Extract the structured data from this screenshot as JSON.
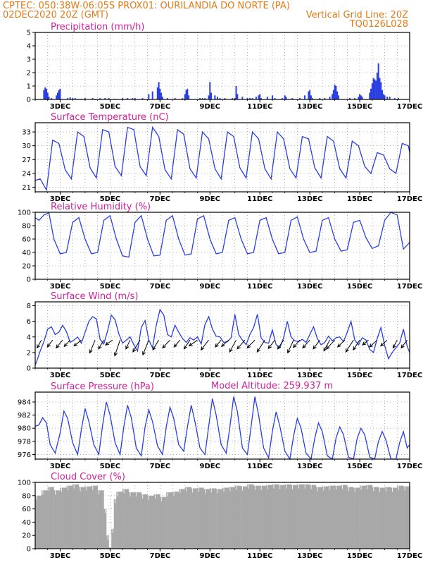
{
  "header": {
    "line1_left": "CPTEC:   050:38W-06:05S   PROX01: OURILANDIA DO NORTE (PA)",
    "line2_left": "02DEC2020 20Z (GMT)",
    "line2_right": "Vertical Grid Line: 20Z",
    "line3_right": "TQ0126L028"
  },
  "model_altitude": "Model Altitude: 259.937 m",
  "colors": {
    "header": "#e07b1a",
    "title": "#d0209a",
    "series": "#2a3fe0",
    "cloud": "#a8a8a8"
  },
  "x_axis": {
    "start_day": 2.0,
    "end_day": 17.0,
    "tick_days": [
      3,
      5,
      7,
      9,
      11,
      13,
      15,
      17
    ],
    "tick_labels": [
      "3DEC",
      "5DEC",
      "7DEC",
      "9DEC",
      "11DEC",
      "13DEC",
      "15DEC",
      "17DEC"
    ]
  },
  "chart_data": [
    {
      "id": "precip",
      "type": "bar",
      "title": "Precipitation (mm/h)",
      "ylim": [
        0,
        5
      ],
      "yticks": [
        0,
        1,
        2,
        3,
        4,
        5
      ],
      "x_unit": "day of December 2020 (fractional)",
      "x": [
        2.35,
        2.4,
        2.45,
        2.5,
        2.55,
        2.65,
        2.85,
        2.9,
        2.95,
        3.0,
        3.3,
        3.4,
        3.5,
        3.6,
        3.7,
        3.85,
        4.0,
        4.3,
        4.4,
        4.6,
        4.8,
        4.95,
        5.2,
        5.5,
        5.7,
        5.9,
        6.0,
        6.3,
        6.55,
        6.7,
        6.9,
        6.95,
        7.0,
        7.05,
        7.1,
        7.3,
        7.6,
        7.9,
        8.0,
        8.05,
        8.1,
        8.15,
        8.6,
        8.7,
        8.8,
        8.95,
        9.0,
        9.05,
        9.2,
        9.3,
        9.4,
        9.6,
        9.9,
        10.0,
        10.05,
        10.1,
        10.3,
        10.5,
        10.6,
        10.7,
        10.85,
        10.95,
        11.0,
        11.05,
        11.3,
        11.5,
        11.6,
        11.9,
        12.0,
        12.05,
        12.3,
        12.6,
        12.8,
        12.95,
        13.0,
        13.05,
        13.1,
        13.4,
        13.6,
        13.8,
        13.9,
        13.95,
        14.0,
        14.05,
        14.1,
        14.15,
        14.6,
        14.8,
        14.95,
        15.0,
        15.05,
        15.1,
        15.4,
        15.45,
        15.5,
        15.55,
        15.6,
        15.65,
        15.7,
        15.75,
        15.8,
        15.85,
        15.9,
        15.95,
        16.0,
        16.1,
        16.2,
        16.4,
        16.55
      ],
      "values": [
        0.7,
        0.9,
        0.8,
        0.5,
        0.2,
        0.1,
        0.3,
        0.5,
        0.7,
        0.8,
        0.1,
        0.15,
        0.1,
        0.1,
        0.05,
        0.05,
        0.1,
        0.1,
        0.05,
        0.1,
        0.1,
        0.1,
        0.05,
        0.1,
        0.1,
        0.1,
        0.1,
        0.1,
        0.4,
        0.6,
        0.9,
        1.3,
        0.8,
        0.5,
        0.2,
        0.1,
        0.1,
        0.1,
        0.4,
        0.7,
        0.8,
        0.3,
        0.1,
        0.1,
        0.1,
        0.3,
        1.3,
        0.5,
        0.3,
        0.2,
        0.1,
        0.1,
        0.1,
        0.1,
        1.0,
        0.4,
        0.2,
        0.1,
        0.1,
        0.1,
        0.2,
        0.3,
        0.4,
        0.1,
        0.2,
        0.3,
        0.1,
        0.1,
        0.3,
        0.2,
        0.1,
        0.1,
        0.3,
        0.6,
        0.7,
        0.3,
        0.1,
        0.1,
        0.1,
        0.2,
        0.4,
        0.7,
        1.1,
        1.0,
        0.6,
        0.3,
        0.1,
        0.1,
        0.2,
        0.4,
        0.3,
        0.2,
        0.5,
        0.8,
        1.2,
        1.6,
        1.5,
        1.4,
        2.0,
        2.7,
        1.6,
        1.3,
        0.7,
        0.4,
        0.3,
        0.2,
        0.2,
        0.1,
        0.1
      ]
    },
    {
      "id": "temp",
      "type": "line",
      "title": "Surface Temperature (nC)",
      "ylim": [
        20,
        35
      ],
      "yticks": [
        21,
        24,
        27,
        30,
        33
      ],
      "x_unit": "day of December 2020 (fractional)",
      "x": [
        2.0,
        2.2,
        2.45,
        2.7,
        2.95,
        3.2,
        3.45,
        3.7,
        3.95,
        4.2,
        4.45,
        4.7,
        4.95,
        5.2,
        5.45,
        5.7,
        5.95,
        6.2,
        6.45,
        6.7,
        6.95,
        7.2,
        7.45,
        7.7,
        7.95,
        8.2,
        8.45,
        8.7,
        8.95,
        9.2,
        9.45,
        9.7,
        9.95,
        10.2,
        10.45,
        10.7,
        10.95,
        11.2,
        11.45,
        11.7,
        11.95,
        12.2,
        12.45,
        12.7,
        12.95,
        13.2,
        13.45,
        13.7,
        13.95,
        14.2,
        14.45,
        14.7,
        14.95,
        15.2,
        15.45,
        15.7,
        15.95,
        16.2,
        16.45,
        16.7,
        16.95,
        17.0
      ],
      "values": [
        22.5,
        22.8,
        20.4,
        31.2,
        30.5,
        24.8,
        22.8,
        33.0,
        32.0,
        25.2,
        23.0,
        33.5,
        33.0,
        25.5,
        23.5,
        34.0,
        33.5,
        25.5,
        23.5,
        34.0,
        32.0,
        24.8,
        22.8,
        33.5,
        32.5,
        25.0,
        23.0,
        33.0,
        31.5,
        25.0,
        22.8,
        33.0,
        32.0,
        25.2,
        23.0,
        33.0,
        31.5,
        25.0,
        22.8,
        33.0,
        31.5,
        25.0,
        23.0,
        32.0,
        31.5,
        25.2,
        23.0,
        32.0,
        31.0,
        25.0,
        23.0,
        31.0,
        30.0,
        25.5,
        24.0,
        28.5,
        28.0,
        25.0,
        24.0,
        30.5,
        30.0,
        28.5
      ]
    },
    {
      "id": "rh",
      "type": "line",
      "title": "Relative Humidity (%)",
      "ylim": [
        0,
        100
      ],
      "yticks": [
        0,
        20,
        40,
        60,
        80,
        100
      ],
      "x_unit": "day of December 2020 (fractional)",
      "x": [
        2.0,
        2.15,
        2.35,
        2.55,
        2.75,
        3.0,
        3.25,
        3.5,
        3.75,
        4.0,
        4.25,
        4.5,
        4.75,
        5.0,
        5.25,
        5.5,
        5.75,
        6.0,
        6.25,
        6.5,
        6.75,
        7.0,
        7.25,
        7.5,
        7.75,
        8.0,
        8.25,
        8.5,
        8.75,
        9.0,
        9.25,
        9.5,
        9.75,
        10.0,
        10.25,
        10.5,
        10.75,
        11.0,
        11.25,
        11.5,
        11.75,
        12.0,
        12.25,
        12.5,
        12.75,
        13.0,
        13.25,
        13.5,
        13.75,
        14.0,
        14.25,
        14.5,
        14.75,
        15.0,
        15.25,
        15.5,
        15.75,
        16.0,
        16.25,
        16.5,
        16.75,
        17.0
      ],
      "values": [
        92,
        88,
        96,
        99,
        60,
        38,
        40,
        85,
        92,
        60,
        38,
        40,
        88,
        95,
        60,
        35,
        33,
        85,
        95,
        60,
        35,
        36,
        88,
        95,
        60,
        36,
        38,
        90,
        95,
        60,
        38,
        40,
        88,
        92,
        60,
        38,
        40,
        88,
        92,
        60,
        38,
        40,
        88,
        93,
        60,
        40,
        42,
        88,
        92,
        60,
        42,
        44,
        85,
        88,
        62,
        46,
        50,
        88,
        100,
        96,
        45,
        55
      ]
    },
    {
      "id": "wind",
      "type": "line",
      "title": "Surface Wind (m/s)",
      "ylim": [
        0,
        8.5
      ],
      "yticks": [
        0,
        2,
        4,
        6,
        8
      ],
      "x_unit": "day of December 2020 (fractional)",
      "x": [
        2.0,
        2.1,
        2.2,
        2.35,
        2.5,
        2.65,
        2.8,
        2.95,
        3.1,
        3.25,
        3.4,
        3.55,
        3.7,
        3.85,
        4.0,
        4.15,
        4.3,
        4.45,
        4.6,
        4.75,
        4.9,
        5.05,
        5.2,
        5.35,
        5.5,
        5.65,
        5.8,
        5.95,
        6.1,
        6.25,
        6.4,
        6.55,
        6.7,
        6.85,
        7.0,
        7.15,
        7.3,
        7.45,
        7.6,
        7.75,
        7.9,
        8.05,
        8.2,
        8.35,
        8.5,
        8.65,
        8.8,
        8.95,
        9.1,
        9.25,
        9.4,
        9.55,
        9.7,
        9.85,
        10.0,
        10.15,
        10.3,
        10.45,
        10.6,
        10.75,
        10.9,
        11.05,
        11.2,
        11.35,
        11.5,
        11.65,
        11.8,
        11.95,
        12.1,
        12.25,
        12.4,
        12.55,
        12.7,
        12.85,
        13.0,
        13.15,
        13.3,
        13.45,
        13.6,
        13.75,
        13.9,
        14.05,
        14.2,
        14.35,
        14.5,
        14.65,
        14.8,
        14.95,
        15.1,
        15.25,
        15.4,
        15.55,
        15.7,
        15.85,
        16.0,
        16.15,
        16.3,
        16.45,
        16.6,
        16.75,
        16.9,
        17.0
      ],
      "values": [
        0.4,
        1.2,
        2.2,
        3.4,
        5.0,
        5.3,
        4.3,
        4.6,
        5.5,
        4.7,
        3.3,
        3.6,
        4.0,
        3.2,
        4.6,
        6.0,
        6.6,
        6.3,
        3.7,
        3.1,
        4.8,
        6.8,
        6.2,
        4.4,
        3.2,
        3.6,
        4.0,
        3.0,
        2.2,
        5.2,
        6.1,
        3.6,
        2.6,
        5.5,
        7.5,
        6.8,
        4.3,
        4.0,
        5.5,
        4.6,
        3.8,
        3.3,
        3.9,
        3.6,
        4.0,
        3.1,
        5.6,
        6.6,
        5.0,
        4.1,
        4.0,
        3.3,
        3.4,
        3.9,
        6.9,
        4.3,
        3.6,
        3.0,
        4.3,
        5.2,
        6.9,
        3.9,
        3.3,
        3.2,
        4.9,
        3.0,
        2.6,
        3.9,
        6.0,
        4.0,
        3.5,
        3.4,
        3.7,
        3.3,
        4.3,
        5.3,
        3.8,
        3.0,
        3.3,
        4.1,
        3.5,
        3.9,
        4.0,
        3.4,
        4.6,
        6.0,
        3.6,
        3.0,
        3.9,
        3.6,
        2.4,
        2.0,
        3.8,
        5.2,
        2.9,
        1.2,
        2.0,
        2.6,
        3.2,
        5.0,
        2.8,
        2.0
      ],
      "arrows_x": [
        2.25,
        2.7,
        3.1,
        3.4,
        3.85,
        4.4,
        4.75,
        5.1,
        5.4,
        5.8,
        6.2,
        6.55,
        6.95,
        7.4,
        7.8,
        8.2,
        8.5,
        8.95,
        9.45,
        9.75,
        10.05,
        10.4,
        10.8,
        11.2,
        11.6,
        11.95,
        12.35,
        12.6,
        13.0,
        13.4,
        13.8,
        14.0,
        14.4,
        14.75,
        15.0,
        15.35,
        15.7,
        16.1,
        16.5,
        16.9
      ],
      "arrows_u": [
        -1.5,
        -1.8,
        -2.2,
        -2.0,
        -2.5,
        -1.8,
        -1.8,
        -2.4,
        -1.8,
        -1.4,
        -2.4,
        -2.0,
        -2.0,
        -2.5,
        -2.0,
        -2.0,
        -2.8,
        -2.6,
        -2.0,
        -2.4,
        -2.2,
        -2.6,
        -2.6,
        -2.6,
        -2.2,
        -2.0,
        -2.0,
        -2.2,
        -2.4,
        -2.2,
        -2.0,
        -2.8,
        -2.4,
        -2.6,
        -2.2,
        -2.0,
        -2.6,
        -2.2,
        -1.4,
        -2.0
      ],
      "arrows_v": [
        -1.6,
        -1.4,
        -1.6,
        -1.3,
        -1.2,
        -2.6,
        -1.8,
        -1.0,
        -3.2,
        -1.8,
        -2.4,
        -3.0,
        -2.0,
        -1.6,
        -1.4,
        -1.8,
        -1.2,
        -2.0,
        -1.4,
        -1.3,
        -2.4,
        -1.8,
        -1.6,
        -2.4,
        -1.7,
        -1.8,
        -2.6,
        -1.5,
        -1.6,
        -1.8,
        -2.2,
        -1.8,
        -1.4,
        -2.4,
        -2.0,
        -1.0,
        -1.4,
        -1.2,
        -1.6,
        -1.6
      ]
    },
    {
      "id": "pres",
      "type": "line",
      "title": "Surface Pressure (hPa)",
      "ylim": [
        975.3,
        985.5
      ],
      "yticks": [
        976,
        978,
        980,
        982,
        984
      ],
      "x_unit": "day of December 2020 (fractional)",
      "x": [
        2.0,
        2.15,
        2.3,
        2.45,
        2.6,
        2.8,
        3.0,
        3.15,
        3.3,
        3.5,
        3.7,
        3.85,
        4.0,
        4.15,
        4.35,
        4.55,
        4.7,
        4.85,
        5.0,
        5.2,
        5.4,
        5.55,
        5.7,
        5.85,
        6.05,
        6.25,
        6.4,
        6.55,
        6.7,
        6.9,
        7.1,
        7.25,
        7.4,
        7.55,
        7.75,
        7.95,
        8.1,
        8.25,
        8.4,
        8.6,
        8.8,
        8.95,
        9.1,
        9.25,
        9.45,
        9.65,
        9.8,
        9.95,
        10.1,
        10.3,
        10.5,
        10.65,
        10.8,
        10.95,
        11.15,
        11.35,
        11.5,
        11.65,
        11.8,
        12.0,
        12.2,
        12.35,
        12.5,
        12.65,
        12.85,
        13.05,
        13.2,
        13.35,
        13.5,
        13.7,
        13.9,
        14.05,
        14.2,
        14.35,
        14.55,
        14.75,
        14.9,
        15.05,
        15.2,
        15.4,
        15.6,
        15.75,
        15.9,
        16.05,
        16.25,
        16.45,
        16.6,
        16.75,
        16.9,
        17.0
      ],
      "values": [
        980.3,
        980.5,
        981.6,
        980.8,
        977.5,
        976.2,
        979.3,
        982.6,
        981.5,
        977.8,
        976.0,
        979.8,
        983.0,
        981.0,
        977.5,
        976.0,
        980.5,
        984.0,
        982.0,
        977.8,
        976.0,
        980.2,
        983.5,
        981.6,
        977.0,
        975.8,
        980.2,
        982.8,
        981.0,
        977.3,
        976.0,
        980.2,
        983.2,
        981.5,
        977.5,
        976.5,
        980.2,
        983.5,
        981.0,
        977.0,
        976.0,
        980.3,
        984.5,
        982.0,
        977.5,
        976.2,
        980.2,
        984.8,
        982.5,
        977.0,
        976.0,
        980.3,
        984.8,
        982.0,
        977.0,
        975.5,
        979.5,
        982.5,
        980.3,
        976.5,
        975.2,
        978.8,
        981.5,
        980.0,
        976.2,
        975.0,
        978.5,
        980.8,
        979.5,
        975.8,
        975.0,
        978.5,
        980.2,
        979.0,
        975.6,
        975.2,
        978.5,
        980.0,
        979.0,
        975.6,
        975.2,
        978.0,
        979.5,
        978.2,
        975.3,
        975.0,
        977.8,
        979.5,
        977.0,
        977.5
      ]
    },
    {
      "id": "cloud",
      "type": "bar",
      "title": "Cloud Cover (%)",
      "ylim": [
        0,
        100
      ],
      "yticks": [
        0,
        20,
        40,
        60,
        80,
        100
      ],
      "x_unit": "day of December 2020 (fractional)",
      "x": [
        2.0,
        2.25,
        2.5,
        2.75,
        3.0,
        3.25,
        3.5,
        3.75,
        4.0,
        4.25,
        4.5,
        4.75,
        4.85,
        4.95,
        5.05,
        5.15,
        5.25,
        5.5,
        5.75,
        6.0,
        6.25,
        6.5,
        6.75,
        7.0,
        7.25,
        7.5,
        7.75,
        8.0,
        8.25,
        8.5,
        8.75,
        9.0,
        9.25,
        9.5,
        9.75,
        10.0,
        10.25,
        10.5,
        10.75,
        11.0,
        11.25,
        11.5,
        11.75,
        12.0,
        12.25,
        12.5,
        12.75,
        13.0,
        13.25,
        13.5,
        13.75,
        14.0,
        14.25,
        14.5,
        14.75,
        15.0,
        15.25,
        15.5,
        15.75,
        16.0,
        16.25,
        16.5,
        16.75,
        17.0
      ],
      "values": [
        80,
        88,
        93,
        88,
        92,
        95,
        97,
        93,
        94,
        95,
        88,
        60,
        20,
        2,
        30,
        75,
        86,
        90,
        85,
        85,
        82,
        80,
        82,
        78,
        85,
        86,
        90,
        93,
        91,
        92,
        90,
        91,
        90,
        92,
        93,
        95,
        94,
        97,
        95,
        95,
        96,
        97,
        96,
        97,
        96,
        97,
        97,
        96,
        93,
        94,
        95,
        95,
        96,
        93,
        92,
        95,
        96,
        93,
        92,
        93,
        92,
        95,
        94,
        95
      ]
    }
  ]
}
